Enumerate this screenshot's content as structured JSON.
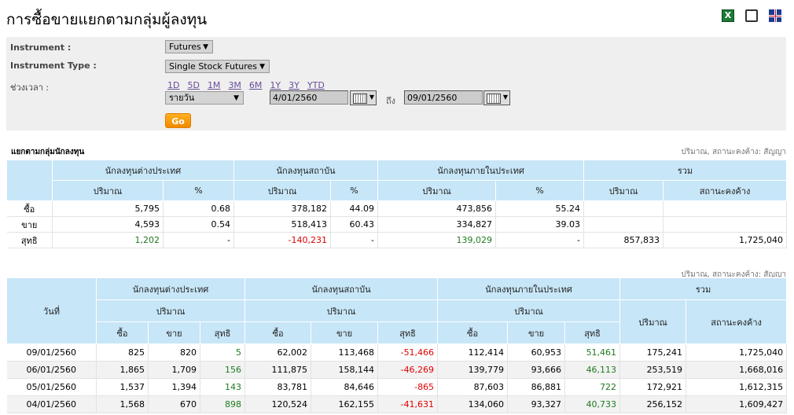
{
  "title": "การซื้อขายแยกตามกลุ่มผู้ลงทุน",
  "toolbar": {
    "excel": "X"
  },
  "form": {
    "instrument_label": "Instrument :",
    "instrument_value": "Futures",
    "type_label": "Instrument Type :",
    "type_value": "Single Stock Futures",
    "period_label": "ช่วงเวลา :",
    "ranges": [
      "1D",
      "5D",
      "1M",
      "3M",
      "6M",
      "1Y",
      "3Y",
      "YTD"
    ],
    "interval": "รายวัน",
    "from": "4/01/2560",
    "to_label": "ถึง",
    "to": "09/01/2560",
    "go": "Go"
  },
  "summary": {
    "title": "แยกตามกลุ่มนักลงทุน",
    "unit": "ปริมาณ, สถานะคงค้าง: สัญญา",
    "groups": [
      "นักลงทุนต่างประเทศ",
      "นักลงทุนสถาบัน",
      "นักลงทุนภายในประเทศ",
      "รวม"
    ],
    "subheaders": [
      "ปริมาณ",
      "%",
      "ปริมาณ",
      "%",
      "ปริมาณ",
      "%",
      "ปริมาณ",
      "สถานะคงค้าง"
    ],
    "rows": [
      {
        "label": "ซื้อ",
        "cells": [
          "5,795",
          "0.68",
          "378,182",
          "44.09",
          "473,856",
          "55.24",
          "",
          ""
        ]
      },
      {
        "label": "ขาย",
        "cells": [
          "4,593",
          "0.54",
          "518,413",
          "60.43",
          "334,827",
          "39.03",
          "",
          ""
        ]
      },
      {
        "label": "สุทธิ",
        "cells": [
          "1,202",
          "-",
          "-140,231",
          "-",
          "139,029",
          "-",
          "857,833",
          "1,725,040"
        ]
      }
    ]
  },
  "daily": {
    "unit": "ปริมาณ, สถานะคงค้าง: สัญญา",
    "date_header": "วันที่",
    "groups": [
      "นักลงทุนต่างประเทศ",
      "นักลงทุนสถาบัน",
      "นักลงทุนภายในประเทศ",
      "รวม"
    ],
    "volume": "ปริมาณ",
    "oi": "สถานะคงค้าง",
    "sub": [
      "ซื้อ",
      "ขาย",
      "สุทธิ"
    ],
    "rows": [
      [
        "09/01/2560",
        "825",
        "820",
        "5",
        "62,002",
        "113,468",
        "-51,466",
        "112,414",
        "60,953",
        "51,461",
        "175,241",
        "1,725,040"
      ],
      [
        "06/01/2560",
        "1,865",
        "1,709",
        "156",
        "111,875",
        "158,144",
        "-46,269",
        "139,779",
        "93,666",
        "46,113",
        "253,519",
        "1,668,016"
      ],
      [
        "05/01/2560",
        "1,537",
        "1,394",
        "143",
        "83,781",
        "84,646",
        "-865",
        "87,603",
        "86,881",
        "722",
        "172,921",
        "1,612,315"
      ],
      [
        "04/01/2560",
        "1,568",
        "670",
        "898",
        "120,524",
        "162,155",
        "-41,631",
        "134,060",
        "93,327",
        "40,733",
        "256,152",
        "1,609,427"
      ]
    ]
  }
}
